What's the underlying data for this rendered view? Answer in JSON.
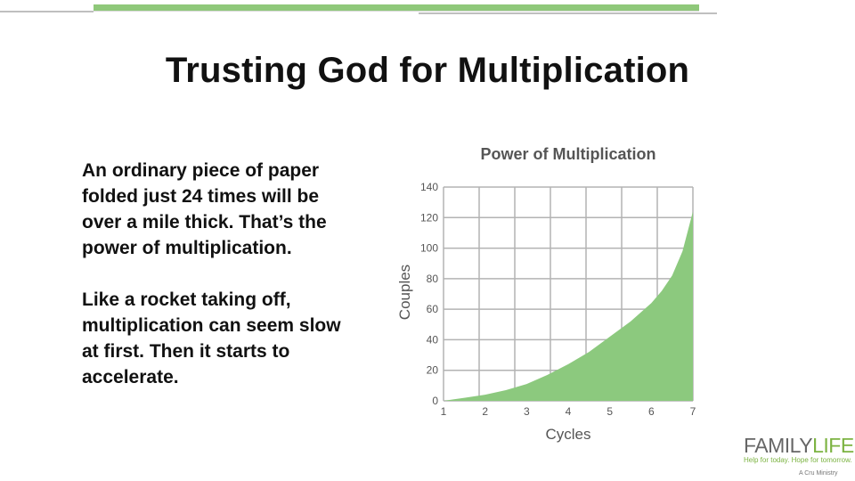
{
  "slide": {
    "title": "Trusting God for Multiplication",
    "paragraphs": [
      "An ordinary piece of paper folded just 24 times will be over a mile thick.  That’s the power of multiplication.",
      "Like a rocket taking off, multiplication can seem slow at first. Then it starts to accelerate."
    ]
  },
  "logo": {
    "family": "FAMILY",
    "life": "LIFE",
    "tagline": "Help for today. Hope for tomorrow.",
    "ministry": "A Cru Ministry"
  },
  "colors": {
    "accent_green": "#8fc87a",
    "area_fill": "#8cc97e",
    "grid": "#b3b3b3",
    "logo_gray": "#666666",
    "logo_green": "#7cb342"
  },
  "chart_data": {
    "type": "area",
    "title": "Power of Multiplication",
    "xlabel": "Cycles",
    "ylabel": "Couples",
    "x_ticks": [
      1,
      2,
      3,
      4,
      5,
      6,
      7
    ],
    "y_ticks": [
      0,
      20,
      40,
      60,
      80,
      100,
      120,
      140
    ],
    "xlim": [
      1,
      7
    ],
    "ylim": [
      0,
      140
    ],
    "grid": true,
    "series": [
      {
        "x": [
          1,
          1.5,
          2,
          2.5,
          3,
          3.5,
          4,
          4.5,
          5,
          5.5,
          6,
          6.25,
          6.5,
          6.75,
          7
        ],
        "y": [
          0,
          2,
          4,
          7,
          11,
          17,
          24,
          32,
          42,
          52,
          64,
          72,
          82,
          98,
          124
        ]
      }
    ]
  }
}
